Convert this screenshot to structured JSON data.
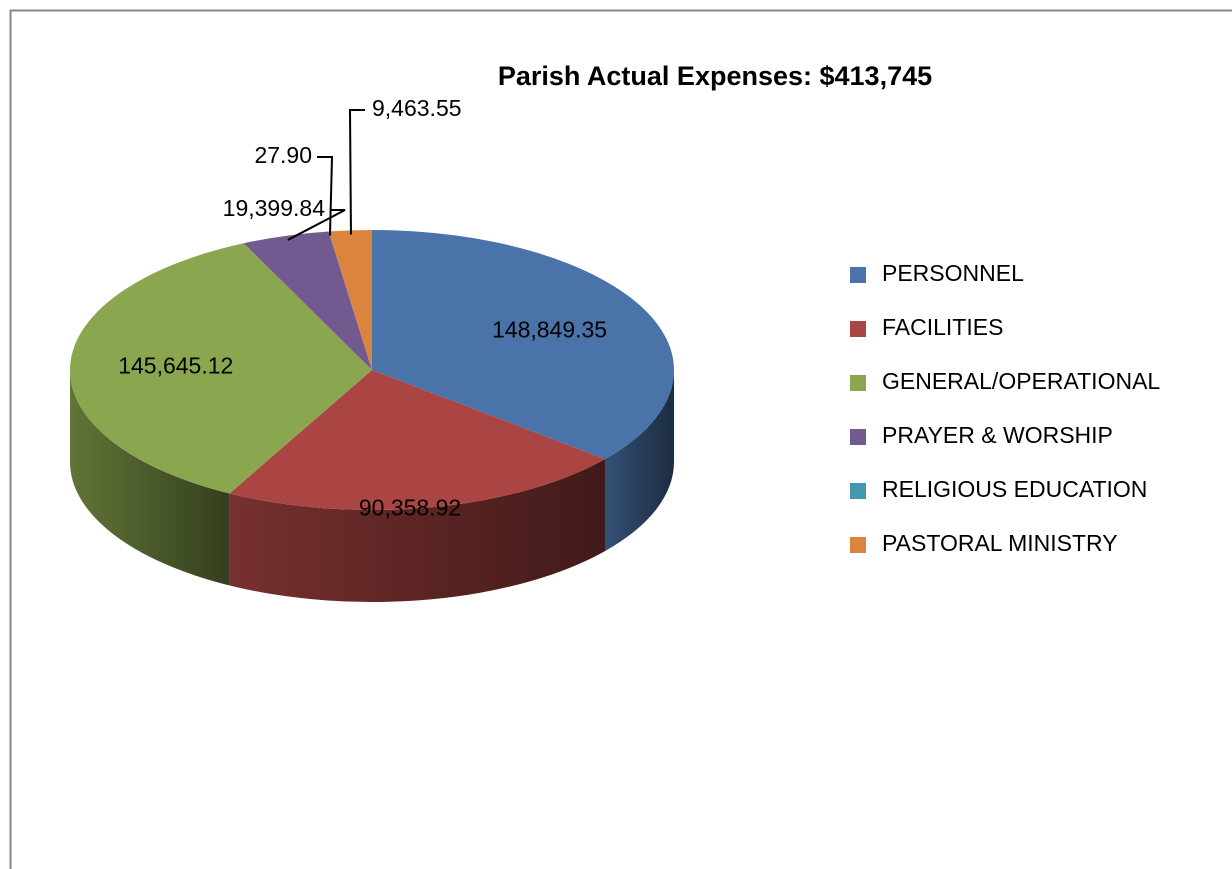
{
  "chart_data": {
    "type": "pie",
    "title": "Parish Actual Expenses: $413,745",
    "categories": [
      "PERSONNEL",
      "FACILITIES",
      "GENERAL/OPERATIONAL",
      "PRAYER & WORSHIP",
      "RELIGIOUS EDUCATION",
      "PASTORAL MINISTRY"
    ],
    "values": [
      148849.35,
      90358.92,
      145645.12,
      19399.84,
      27.9,
      9463.55
    ],
    "value_labels": [
      "148,849.35",
      "90,358.92",
      "145,645.12",
      "19,399.84",
      "27.90",
      "9,463.55"
    ],
    "colors": [
      "#4a73a9",
      "#aa4543",
      "#8aa74f",
      "#725a91",
      "#4299b0",
      "#db843e"
    ],
    "legend": "right"
  }
}
